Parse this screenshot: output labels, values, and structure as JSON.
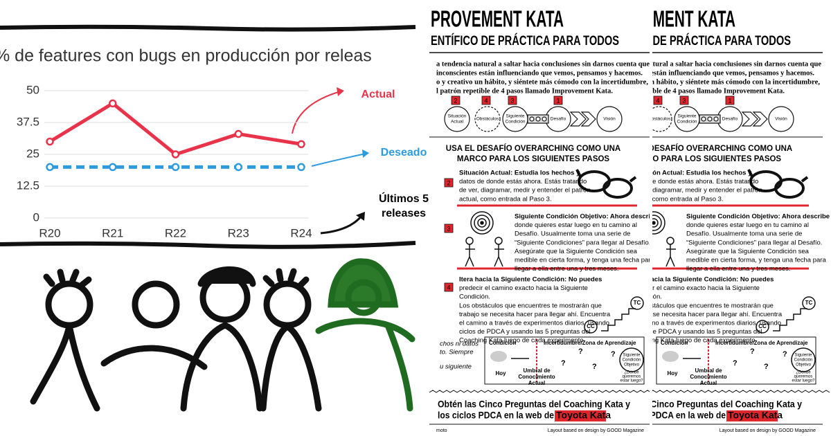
{
  "chart_data": {
    "type": "line",
    "title": "% de features con bugs en producción por releas",
    "categories": [
      "R20",
      "R21",
      "R22",
      "R23",
      "R24"
    ],
    "series": [
      {
        "name": "Actual",
        "color": "#e8334a",
        "values": [
          30,
          45,
          25,
          33,
          29
        ]
      },
      {
        "name": "Deseado",
        "color": "#2d9be0",
        "values": [
          20,
          20,
          20,
          20,
          20
        ],
        "dashed": true
      }
    ],
    "ylim": [
      0,
      50
    ],
    "yticks": [
      0,
      12.5,
      25,
      37.5,
      50
    ],
    "grid": true,
    "annotation": [
      "Últimos 5",
      "releases"
    ]
  },
  "poster": {
    "title": "PROVEMENT KATA",
    "subtitle": "ENTÍFICO DE PRÁCTICA PARA TODOS",
    "intro": [
      "a tendencia natural a saltar hacia conclusiones sin darnos cuenta que",
      "inconscientes están influenciando que vemos, pensamos y hacemos.",
      "o y creativo un hábito, y siéntete más cómodo con la incertidumbre,",
      "l patrón repetible de 4 pasos llamado Improvement Kata."
    ],
    "cycle": {
      "numbers": [
        "2",
        "4",
        "3",
        "1"
      ],
      "stages": [
        [
          "Situación",
          "Actual"
        ],
        [
          "Obstáculos"
        ],
        [
          "Siguiente",
          "Condición"
        ],
        [
          "Desafío"
        ],
        [
          "Visión"
        ]
      ]
    },
    "heading": [
      "USA EL DESAFÍO OVERARCHING COMO UNA",
      "MARCO PARA LOS SIGUIENTES PASOS"
    ],
    "steps": [
      {
        "number": "2",
        "lines": [
          "Situación Actual: Estudia los hechos y",
          "datos de donde estás ahora. Estás tratando",
          "de ver, diagramar, medir y entender el patrón",
          "actual, como entrada al Paso 3."
        ]
      },
      {
        "number": "3",
        "lines": [
          "Siguiente Condición Objetivo: Ahora describe",
          "donde quieres estar luego en tu camino al",
          "Desafío. Usualmente toma una serie de",
          "“Siguiente Condiciones” para llegar al Desafío.",
          "Asegúrate que la Siguiente Condición sea",
          "medible en cierta forma, y tenga una fecha para",
          "llegar a ella entre una y tres meses."
        ]
      },
      {
        "number": "4",
        "lines": [
          "Itera hacia la Siguiente Condición: No puedes",
          "predecir el camino exacto hacia la Siguiente",
          "Condición.",
          "Los obstáculos que encuentres te mostrarán que",
          "trabajo se necesita hacer para llegar ahí. Encuentra",
          "el camino a través de experimentos diarios, usando",
          "ciclos de PDCA y usando las 5 preguntas del",
          "Coaching Kata luego de cada experimento."
        ]
      }
    ],
    "badges": [
      "TC",
      "CC"
    ],
    "side": [
      "chos ni datos",
      "to. Siempre",
      "u siguiente"
    ],
    "box": {
      "left": "Condición",
      "right": "Incertidumbre/Zona de Aprendizaje",
      "today": "Hoy",
      "threshold": [
        "Umbral de",
        "Conocimiento",
        "Actual"
      ],
      "mark": "?",
      "target": [
        "Siguiente",
        "Condición",
        "Objetivo"
      ],
      "question": [
        "¿Dónde",
        "queremos",
        "estar luego?"
      ]
    },
    "cta": [
      "Obtén las Cinco Preguntas del Coaching Kata y",
      "los ciclos PDCA en la web de "
    ],
    "link": "Toyota Kata",
    "footer_left": "moto",
    "footer_right": "Layout based on design by GOOD Magazine"
  }
}
